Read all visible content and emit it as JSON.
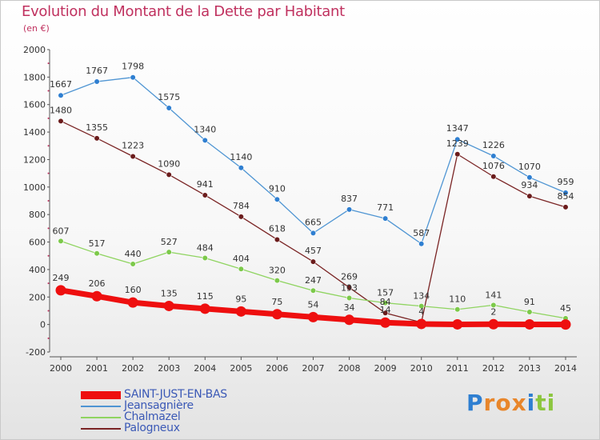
{
  "header": {
    "title": "Evolution du Montant de la Dette par Habitant",
    "unit": "(en €)"
  },
  "colors": {
    "title": "#c0315f",
    "legend_text": "#3b59b6"
  },
  "logo": {
    "text": "Proxiti",
    "letters": [
      {
        "ch": "P",
        "color": "#2f7fd1"
      },
      {
        "ch": "r",
        "color": "#e8862b"
      },
      {
        "ch": "o",
        "color": "#e8862b"
      },
      {
        "ch": "x",
        "color": "#e8862b"
      },
      {
        "ch": "i",
        "color": "#2f7fd1"
      },
      {
        "ch": "t",
        "color": "#8cc63f"
      },
      {
        "ch": "i",
        "color": "#8cc63f"
      }
    ]
  },
  "chart_data": {
    "type": "line",
    "title": "Evolution du Montant de la Dette par Habitant",
    "ylabel": "(en €)",
    "xlabel": "",
    "ylim": [
      -200,
      2000
    ],
    "yticks": [
      -200,
      0,
      200,
      400,
      600,
      800,
      1000,
      1200,
      1400,
      1600,
      1800,
      2000
    ],
    "grid": false,
    "legend_position": "bottom-left",
    "x": [
      "2000",
      "2001",
      "2002",
      "2003",
      "2004",
      "2005",
      "2006",
      "2007",
      "2008",
      "2009",
      "2010",
      "2011",
      "2012",
      "2013",
      "2014"
    ],
    "series": [
      {
        "name": "Jeansagnière",
        "color": "#4f95d3",
        "marker_color": "#2f7fd1",
        "values": [
          1667,
          1767,
          1798,
          1575,
          1340,
          1140,
          910,
          665,
          837,
          771,
          587,
          1347,
          1226,
          1070,
          959
        ],
        "labels": [
          "1667",
          "1767",
          "1798",
          "1575",
          "1340",
          "1140",
          "910",
          "665",
          "837",
          "771",
          "587",
          "1347",
          "1226",
          "1070",
          "959"
        ]
      },
      {
        "name": "Palogneux",
        "color": "#7a2424",
        "marker_color": "#6b1c1c",
        "values": [
          1480,
          1355,
          1223,
          1090,
          941,
          784,
          618,
          457,
          269,
          84,
          15,
          1239,
          1076,
          934,
          854
        ],
        "labels": [
          "1480",
          "1355",
          "1223",
          "1090",
          "941",
          "784",
          "618",
          "457",
          "269",
          "84",
          "",
          "1239",
          "1076",
          "934",
          "854"
        ]
      },
      {
        "name": "Chalmazel",
        "color": "#8fd460",
        "marker_color": "#7cc94a",
        "values": [
          607,
          517,
          440,
          527,
          484,
          404,
          320,
          247,
          193,
          157,
          134,
          110,
          141,
          91,
          45
        ],
        "labels": [
          "607",
          "517",
          "440",
          "527",
          "484",
          "404",
          "320",
          "247",
          "193",
          "157",
          "134",
          "110",
          "141",
          "91",
          "45"
        ]
      },
      {
        "name": "SAINT-JUST-EN-BAS",
        "color": "#ee0f0f",
        "marker_color": "#ee0f0f",
        "values": [
          249,
          206,
          160,
          135,
          115,
          95,
          75,
          54,
          34,
          14,
          4,
          1,
          2,
          1,
          0
        ],
        "labels": [
          "249",
          "206",
          "160",
          "135",
          "115",
          "95",
          "75",
          "54",
          "34",
          "14",
          "4",
          "",
          "2",
          "",
          ""
        ]
      }
    ],
    "legend_order": [
      "SAINT-JUST-EN-BAS",
      "Jeansagnière",
      "Chalmazel",
      "Palogneux"
    ]
  }
}
